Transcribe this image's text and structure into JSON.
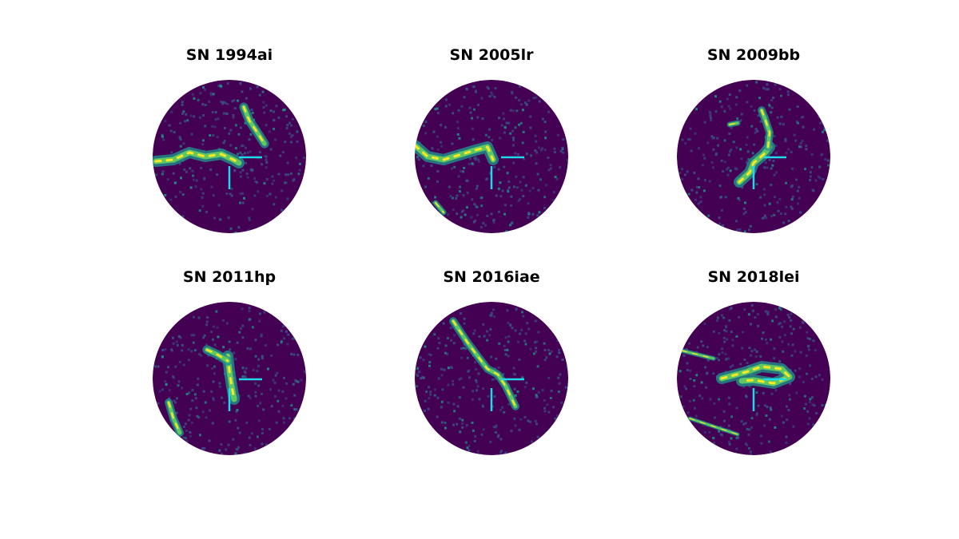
{
  "panels": [
    {
      "title": "SN 1994ai"
    },
    {
      "title": "SN 2005lr"
    },
    {
      "title": "SN 2009bb"
    },
    {
      "title": "SN 2011hp"
    },
    {
      "title": "SN 2016iae"
    },
    {
      "title": "SN 2018lei"
    }
  ]
}
